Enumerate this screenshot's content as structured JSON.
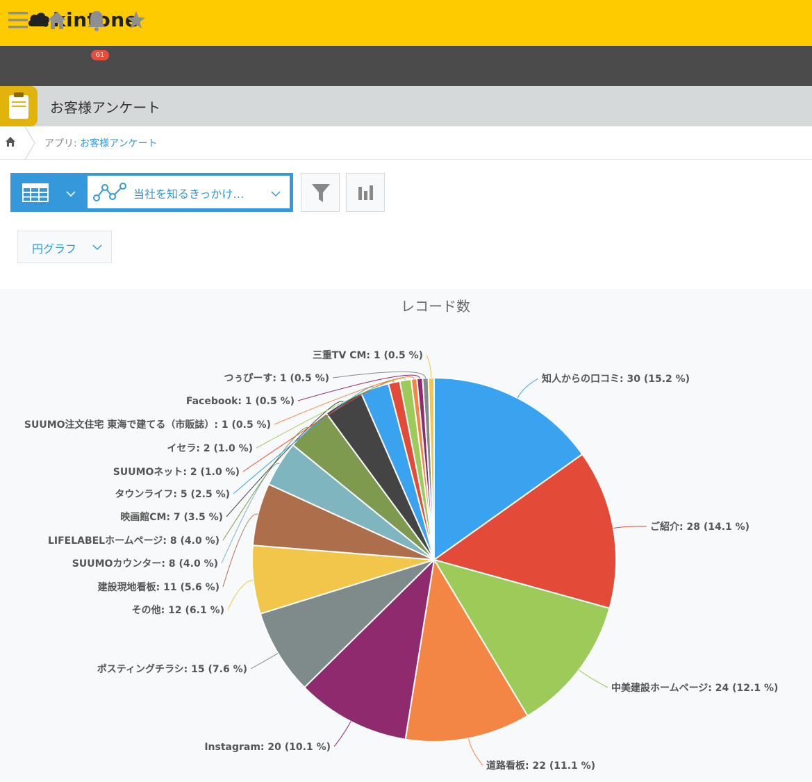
{
  "brand": {
    "name": "kintone",
    "color": "#fecb00"
  },
  "navbar": {
    "menu_icon": "hamburger-icon",
    "home_icon": "home-icon",
    "notifications": {
      "icon": "bell-icon",
      "count": "61"
    },
    "favorites_icon": "star-icon"
  },
  "app": {
    "title": "お客様アンケート",
    "icon": "clipboard-icon"
  },
  "breadcrumb": {
    "prefix": "アプリ: ",
    "app_link": "お客様アンケート"
  },
  "toolbar": {
    "view_icon": "table-icon",
    "graph_select_label": "当社を知るきっかけ…",
    "filter_icon": "filter-icon",
    "graph_icon": "bar-chart-icon"
  },
  "graph_type": {
    "label": "円グラフ"
  },
  "chart_data": {
    "type": "pie",
    "title": "レコード数",
    "slices": [
      {
        "name": "知人からの口コミ",
        "value": 30,
        "percent": "15.2 %",
        "color": "#3aa3f0",
        "label": "知人からの口コミ: 30 (15.2 %)"
      },
      {
        "name": "ご紹介",
        "value": 28,
        "percent": "14.1 %",
        "color": "#e44a38",
        "label": "ご紹介: 28 (14.1 %)"
      },
      {
        "name": "中美建設ホームページ",
        "value": 24,
        "percent": "12.1 %",
        "color": "#9ccb5a",
        "label": "中美建設ホームページ: 24 (12.1 %)"
      },
      {
        "name": "道路看板",
        "value": 22,
        "percent": "11.1 %",
        "color": "#f38645",
        "label": "道路看板: 22 (11.1 %)"
      },
      {
        "name": "Instagram",
        "value": 20,
        "percent": "10.1 %",
        "color": "#8e2a6d",
        "label": "Instagram: 20 (10.1 %)"
      },
      {
        "name": "ポスティングチラシ",
        "value": 15,
        "percent": "7.6 %",
        "color": "#7f8a8b",
        "label": "ポスティングチラシ: 15 (7.6 %)"
      },
      {
        "name": "その他",
        "value": 12,
        "percent": "6.1 %",
        "color": "#f2c64b",
        "label": "その他: 12 (6.1 %)"
      },
      {
        "name": "建設現地看板",
        "value": 11,
        "percent": "5.6 %",
        "color": "#ad6f4b",
        "label": "建設現地看板: 11 (5.6 %)"
      },
      {
        "name": "SUUMOカウンター",
        "value": 8,
        "percent": "4.0 %",
        "color": "#7eb5bf",
        "label": "SUUMOカウンター: 8 (4.0 %)"
      },
      {
        "name": "LIFELABELホームページ",
        "value": 8,
        "percent": "4.0 %",
        "color": "#7d9a4f",
        "label": "LIFELABELホームページ: 8 (4.0 %)"
      },
      {
        "name": "映画館CM",
        "value": 7,
        "percent": "3.5 %",
        "color": "#444444",
        "label": "映画館CM: 7 (3.5 %)"
      },
      {
        "name": "タウンライフ",
        "value": 5,
        "percent": "2.5 %",
        "color": "#3aa3f0",
        "label": "タウンライフ: 5 (2.5 %)"
      },
      {
        "name": "SUUMOネット",
        "value": 2,
        "percent": "1.0 %",
        "color": "#e44a38",
        "label": "SUUMOネット: 2 (1.0 %)"
      },
      {
        "name": "イセラ",
        "value": 2,
        "percent": "1.0 %",
        "color": "#9ccb5a",
        "label": "イセラ: 2 (1.0 %)"
      },
      {
        "name": "SUUMO注文住宅 東海で建てる（市販誌）",
        "value": 1,
        "percent": "0.5 %",
        "color": "#f38645",
        "label": "SUUMO注文住宅 東海で建てる（市販誌）: 1 (0.5 %)"
      },
      {
        "name": "Facebook",
        "value": 1,
        "percent": "0.5 %",
        "color": "#8e2a6d",
        "label": "Facebook: 1 (0.5 %)"
      },
      {
        "name": "つぅぴーす",
        "value": 1,
        "percent": "0.5 %",
        "color": "#7f8a8b",
        "label": "つぅぴーす: 1 (0.5 %)"
      },
      {
        "name": "三重TV CM",
        "value": 1,
        "percent": "0.5 %",
        "color": "#f2c64b",
        "label": "三重TV CM: 1 (0.5 %)"
      }
    ]
  }
}
